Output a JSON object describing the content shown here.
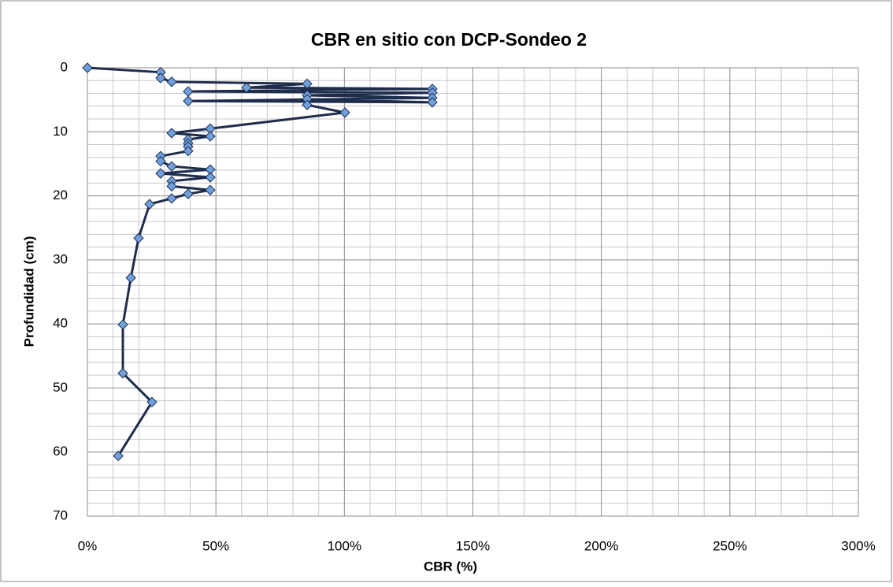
{
  "chart_data": {
    "type": "line",
    "title": "CBR en sitio con DCP-Sondeo 2",
    "x_label": "CBR (%)",
    "y_label": "Profundidad (cm)",
    "x": [
      0,
      28.5,
      28.5,
      32.8,
      85.5,
      61.9,
      134.2,
      39.2,
      134.2,
      85.5,
      134.2,
      39.2,
      134.2,
      85.5,
      85.5,
      100.2,
      47.8,
      32.8,
      47.8,
      39.2,
      39.2,
      39.2,
      39.2,
      28.5,
      28.5,
      32.8,
      47.8,
      28.5,
      47.8,
      32.8,
      32.8,
      47.8,
      39.2,
      32.8,
      24.2,
      19.9,
      16.9,
      13.8,
      13.8,
      25.1,
      12
    ],
    "values": [
      0,
      0.7,
      1.6,
      2.2,
      2.5,
      3.1,
      3.3,
      3.7,
      3.9,
      4.3,
      4.7,
      5.2,
      5.4,
      4.9,
      5.8,
      7.0,
      9.5,
      10.2,
      10.7,
      11.2,
      11.8,
      12.3,
      13.0,
      13.8,
      14.6,
      15.4,
      15.9,
      16.5,
      17.1,
      17.7,
      18.5,
      19.1,
      19.7,
      20.4,
      21.3,
      26.6,
      32.8,
      40.1,
      47.7,
      52.2,
      60.6
    ],
    "color": "#1f2d4d",
    "marker_color": "#6fa0dc",
    "xlim": [
      0,
      300
    ],
    "xticks": [
      {
        "value": 0,
        "label": "0%"
      },
      {
        "value": 50,
        "label": "50%"
      },
      {
        "value": 100,
        "label": "100%"
      },
      {
        "value": 150,
        "label": "150%"
      },
      {
        "value": 200,
        "label": "200%"
      },
      {
        "value": 250,
        "label": "250%"
      },
      {
        "value": 300,
        "label": "300%"
      }
    ],
    "ylim": [
      0,
      70
    ],
    "yticks": [
      0,
      10,
      20,
      30,
      40,
      50,
      60,
      70
    ],
    "y_inverted": true,
    "grid": true,
    "minor_grid": true
  }
}
